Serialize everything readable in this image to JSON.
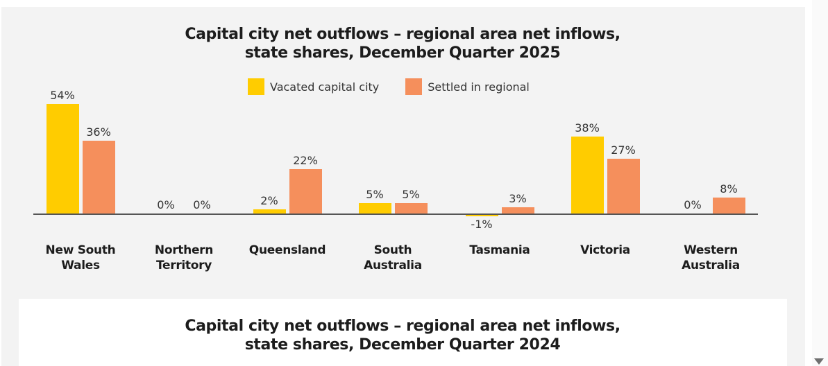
{
  "chart_data": {
    "type": "bar",
    "title": "Capital city net outflows – regional area net inflows, state shares, December Quarter 2025",
    "title_lines": [
      "Capital city net outflows – regional area net inflows,",
      "state shares, December Quarter 2025"
    ],
    "categories": [
      "New South Wales",
      "Northern Territory",
      "Queensland",
      "South Australia",
      "Tasmania",
      "Victoria",
      "Western Australia"
    ],
    "category_lines": [
      [
        "New South",
        "Wales"
      ],
      [
        "Northern",
        "Territory"
      ],
      [
        "Queensland"
      ],
      [
        "South",
        "Australia"
      ],
      [
        "Tasmania"
      ],
      [
        "Victoria"
      ],
      [
        "Western",
        "Australia"
      ]
    ],
    "series": [
      {
        "name": "Vacated capital city",
        "color": "#ffcc00",
        "values": [
          54,
          0,
          2,
          5,
          -1,
          38,
          0
        ],
        "labels": [
          "54%",
          "0%",
          "2%",
          "5%",
          "-1%",
          "38%",
          "0%"
        ]
      },
      {
        "name": "Settled in regional",
        "color": "#f58f5c",
        "values": [
          36,
          0,
          22,
          5,
          3,
          27,
          8
        ],
        "labels": [
          "36%",
          "0%",
          "22%",
          "5%",
          "3%",
          "27%",
          "8%"
        ]
      }
    ],
    "xlabel": "",
    "ylabel": "",
    "ylim": [
      -1,
      54
    ],
    "grid": false,
    "legend_position": "top"
  },
  "second_chart": {
    "title_lines": [
      "Capital city net outflows – regional area net inflows,",
      "state shares, December Quarter 2024"
    ]
  }
}
